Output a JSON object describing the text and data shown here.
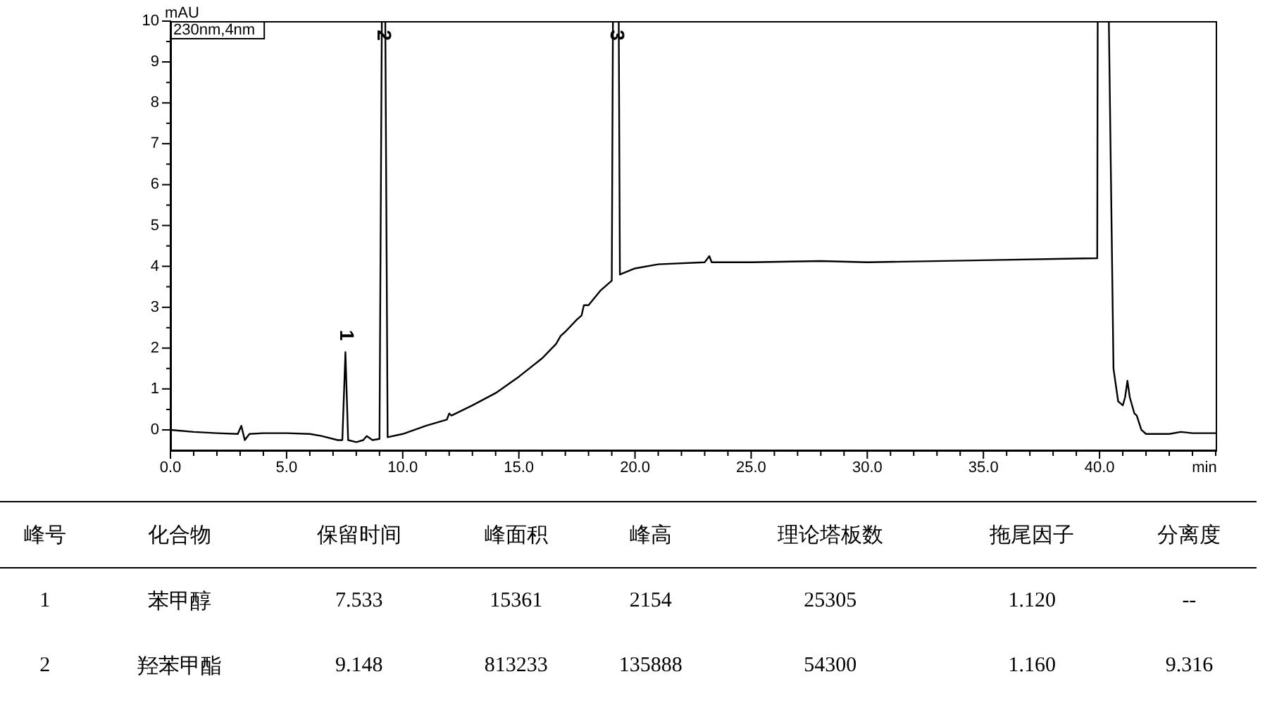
{
  "chart_data": [
    {
      "type": "line",
      "xlabel": "min",
      "ylabel": "mAU",
      "xlim": [
        0,
        45
      ],
      "ylim": [
        -0.5,
        10
      ],
      "xticks": [
        {
          "value": 0,
          "label": "0.0"
        },
        {
          "value": 1,
          "label": null
        },
        {
          "value": 2,
          "label": null
        },
        {
          "value": 3,
          "label": null
        },
        {
          "value": 4,
          "label": null
        },
        {
          "value": 5,
          "label": "5.0"
        },
        {
          "value": 6,
          "label": null
        },
        {
          "value": 7,
          "label": null
        },
        {
          "value": 8,
          "label": null
        },
        {
          "value": 9,
          "label": null
        },
        {
          "value": 10,
          "label": "10.0"
        },
        {
          "value": 11,
          "label": null
        },
        {
          "value": 12,
          "label": null
        },
        {
          "value": 13,
          "label": null
        },
        {
          "value": 14,
          "label": null
        },
        {
          "value": 15,
          "label": "15.0"
        },
        {
          "value": 16,
          "label": null
        },
        {
          "value": 17,
          "label": null
        },
        {
          "value": 18,
          "label": null
        },
        {
          "value": 19,
          "label": null
        },
        {
          "value": 20,
          "label": "20.0"
        },
        {
          "value": 21,
          "label": null
        },
        {
          "value": 22,
          "label": null
        },
        {
          "value": 23,
          "label": null
        },
        {
          "value": 24,
          "label": null
        },
        {
          "value": 25,
          "label": "25.0"
        },
        {
          "value": 26,
          "label": null
        },
        {
          "value": 27,
          "label": null
        },
        {
          "value": 28,
          "label": null
        },
        {
          "value": 29,
          "label": null
        },
        {
          "value": 30,
          "label": "30.0"
        },
        {
          "value": 31,
          "label": null
        },
        {
          "value": 32,
          "label": null
        },
        {
          "value": 33,
          "label": null
        },
        {
          "value": 34,
          "label": null
        },
        {
          "value": 35,
          "label": "35.0"
        },
        {
          "value": 36,
          "label": null
        },
        {
          "value": 37,
          "label": null
        },
        {
          "value": 38,
          "label": null
        },
        {
          "value": 39,
          "label": null
        },
        {
          "value": 40,
          "label": "40.0"
        },
        {
          "value": 41,
          "label": null
        },
        {
          "value": 42,
          "label": null
        },
        {
          "value": 43,
          "label": null
        },
        {
          "value": 44,
          "label": null
        },
        {
          "value": 45,
          "label": null
        }
      ],
      "yticks": [
        0,
        {
          "value": 0.5,
          "label": null
        },
        1,
        {
          "value": 1.5,
          "label": null
        },
        2,
        {
          "value": 2.5,
          "label": null
        },
        3,
        {
          "value": 3.5,
          "label": null
        },
        4,
        {
          "value": 4.5,
          "label": null
        },
        5,
        {
          "value": 5.5,
          "label": null
        },
        6,
        {
          "value": 6.5,
          "label": null
        },
        7,
        {
          "value": 7.5,
          "label": null
        },
        8,
        {
          "value": 8.5,
          "label": null
        },
        9,
        {
          "value": 9.5,
          "label": null
        },
        10
      ],
      "grid": false,
      "legend": false,
      "marker": "none",
      "line_style": "solid",
      "annotations": [
        "230nm,4nm",
        {
          "text": "1",
          "x": 7.533,
          "y": 1.9
        },
        {
          "text": "2",
          "x": 9.148,
          "y": 10
        },
        {
          "text": "3",
          "x": 19.2,
          "y": 10
        }
      ],
      "series": [
        {
          "color": "#000000",
          "x": [
            0,
            1,
            2,
            2.9,
            3.05,
            3.2,
            3.4,
            4,
            5,
            6,
            6.5,
            7.2,
            7.4,
            7.533,
            7.65,
            8,
            8.3,
            8.45,
            8.7,
            9.0,
            9.1,
            9.25,
            9.35,
            10,
            11,
            11.9,
            12,
            12.1,
            13,
            14,
            15,
            16,
            16.6,
            16.8,
            17,
            17.5,
            17.7,
            17.8,
            18,
            18.5,
            19,
            19.05,
            19.3,
            19.35,
            20,
            21,
            23,
            23.2,
            23.3,
            25,
            28,
            30,
            35,
            39.9,
            39.92,
            40.1,
            40.4,
            40.6,
            40.8,
            41,
            41.1,
            41.2,
            41.3,
            41.5,
            41.6,
            41.8,
            42,
            43,
            43.5,
            44,
            45
          ],
          "values": [
            0,
            -0.05,
            -0.08,
            -0.1,
            0.1,
            -0.25,
            -0.1,
            -0.08,
            -0.08,
            -0.1,
            -0.15,
            -0.25,
            -0.25,
            1.9,
            -0.25,
            -0.3,
            -0.25,
            -0.15,
            -0.25,
            -0.22,
            10,
            10,
            -0.18,
            -0.1,
            0.1,
            0.25,
            0.4,
            0.35,
            0.6,
            0.9,
            1.3,
            1.75,
            2.1,
            2.3,
            2.4,
            2.7,
            2.8,
            3.05,
            3.05,
            3.4,
            3.65,
            10,
            10,
            3.8,
            3.95,
            4.05,
            4.1,
            4.25,
            4.1,
            4.1,
            4.13,
            4.1,
            4.15,
            4.2,
            10,
            null,
            10,
            1.5,
            0.7,
            0.6,
            0.8,
            1.2,
            0.8,
            0.4,
            0.35,
            0,
            -0.1,
            -0.1,
            -0.05,
            -0.08,
            -0.08
          ]
        }
      ]
    },
    {
      "type": "other",
      "annotations": [
        "峰号",
        "化合物",
        "保留时间",
        "峰面积",
        "峰高",
        "理论塔板数",
        "拖尾因子",
        "分离度",
        "1",
        "苯甲醇",
        "7.533",
        "15361",
        "2154",
        "25305",
        "1.120",
        "--",
        "2",
        "羟苯甲酯",
        "9.148",
        "813233",
        "135888",
        "54300",
        "1.160",
        "9.316"
      ]
    }
  ]
}
